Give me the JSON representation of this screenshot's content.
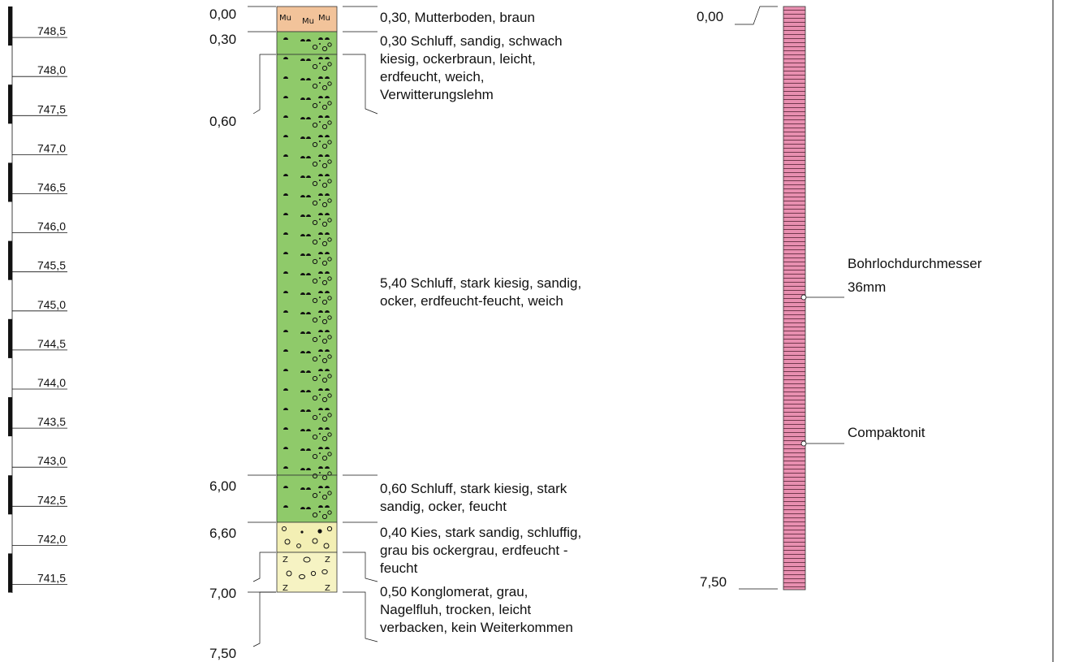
{
  "colors": {
    "topsoil": "#f2c39a",
    "silt": "#8fca6a",
    "gravel": "#f3efb4",
    "conglomerate": "#f6f3c3",
    "backfill": "#e88fb0",
    "ink": "#111111"
  },
  "scale": {
    "labels": [
      "748,5",
      "748,0",
      "747,5",
      "747,0",
      "746,5",
      "746,0",
      "745,5",
      "745,0",
      "744,5",
      "744,0",
      "743,5",
      "743,0",
      "742,5",
      "742,0",
      "741,5"
    ]
  },
  "depths": {
    "d0": "0,00",
    "d1": "0,30",
    "d2": "0,60",
    "d3": "6,00",
    "d4": "6,60",
    "d5": "7,00",
    "d6": "7,50"
  },
  "layers": {
    "l1": [
      "0,30, Mutterboden, braun"
    ],
    "l2": [
      "0,30 Schluff, sandig, schwach",
      "kiesig, ockerbraun, leicht,",
      "erdfeucht, weich,",
      "Verwitterungslehm"
    ],
    "l3": [
      "5,40 Schluff, stark kiesig, sandig,",
      "ocker, erdfeucht-feucht, weich"
    ],
    "l4": [
      "0,60 Schluff, stark kiesig, stark",
      "sandig, ocker, feucht"
    ],
    "l5": [
      "0,40 Kies, stark sandig, schluffig,",
      "grau bis ockergrau, erdfeucht -",
      "feucht"
    ],
    "l6": [
      "0,50 Konglomerat, grau,",
      "Nagelfluh, trocken, leicht",
      "verbacken, kein Weiterkommen"
    ]
  },
  "symbols": {
    "topsoil": "Mu"
  },
  "well": {
    "top": "0,00",
    "bottom": "7,50",
    "diameter_label": "Bohrlochdurchmesser",
    "diameter_value": "36mm",
    "fill_label": "Compaktonit"
  }
}
